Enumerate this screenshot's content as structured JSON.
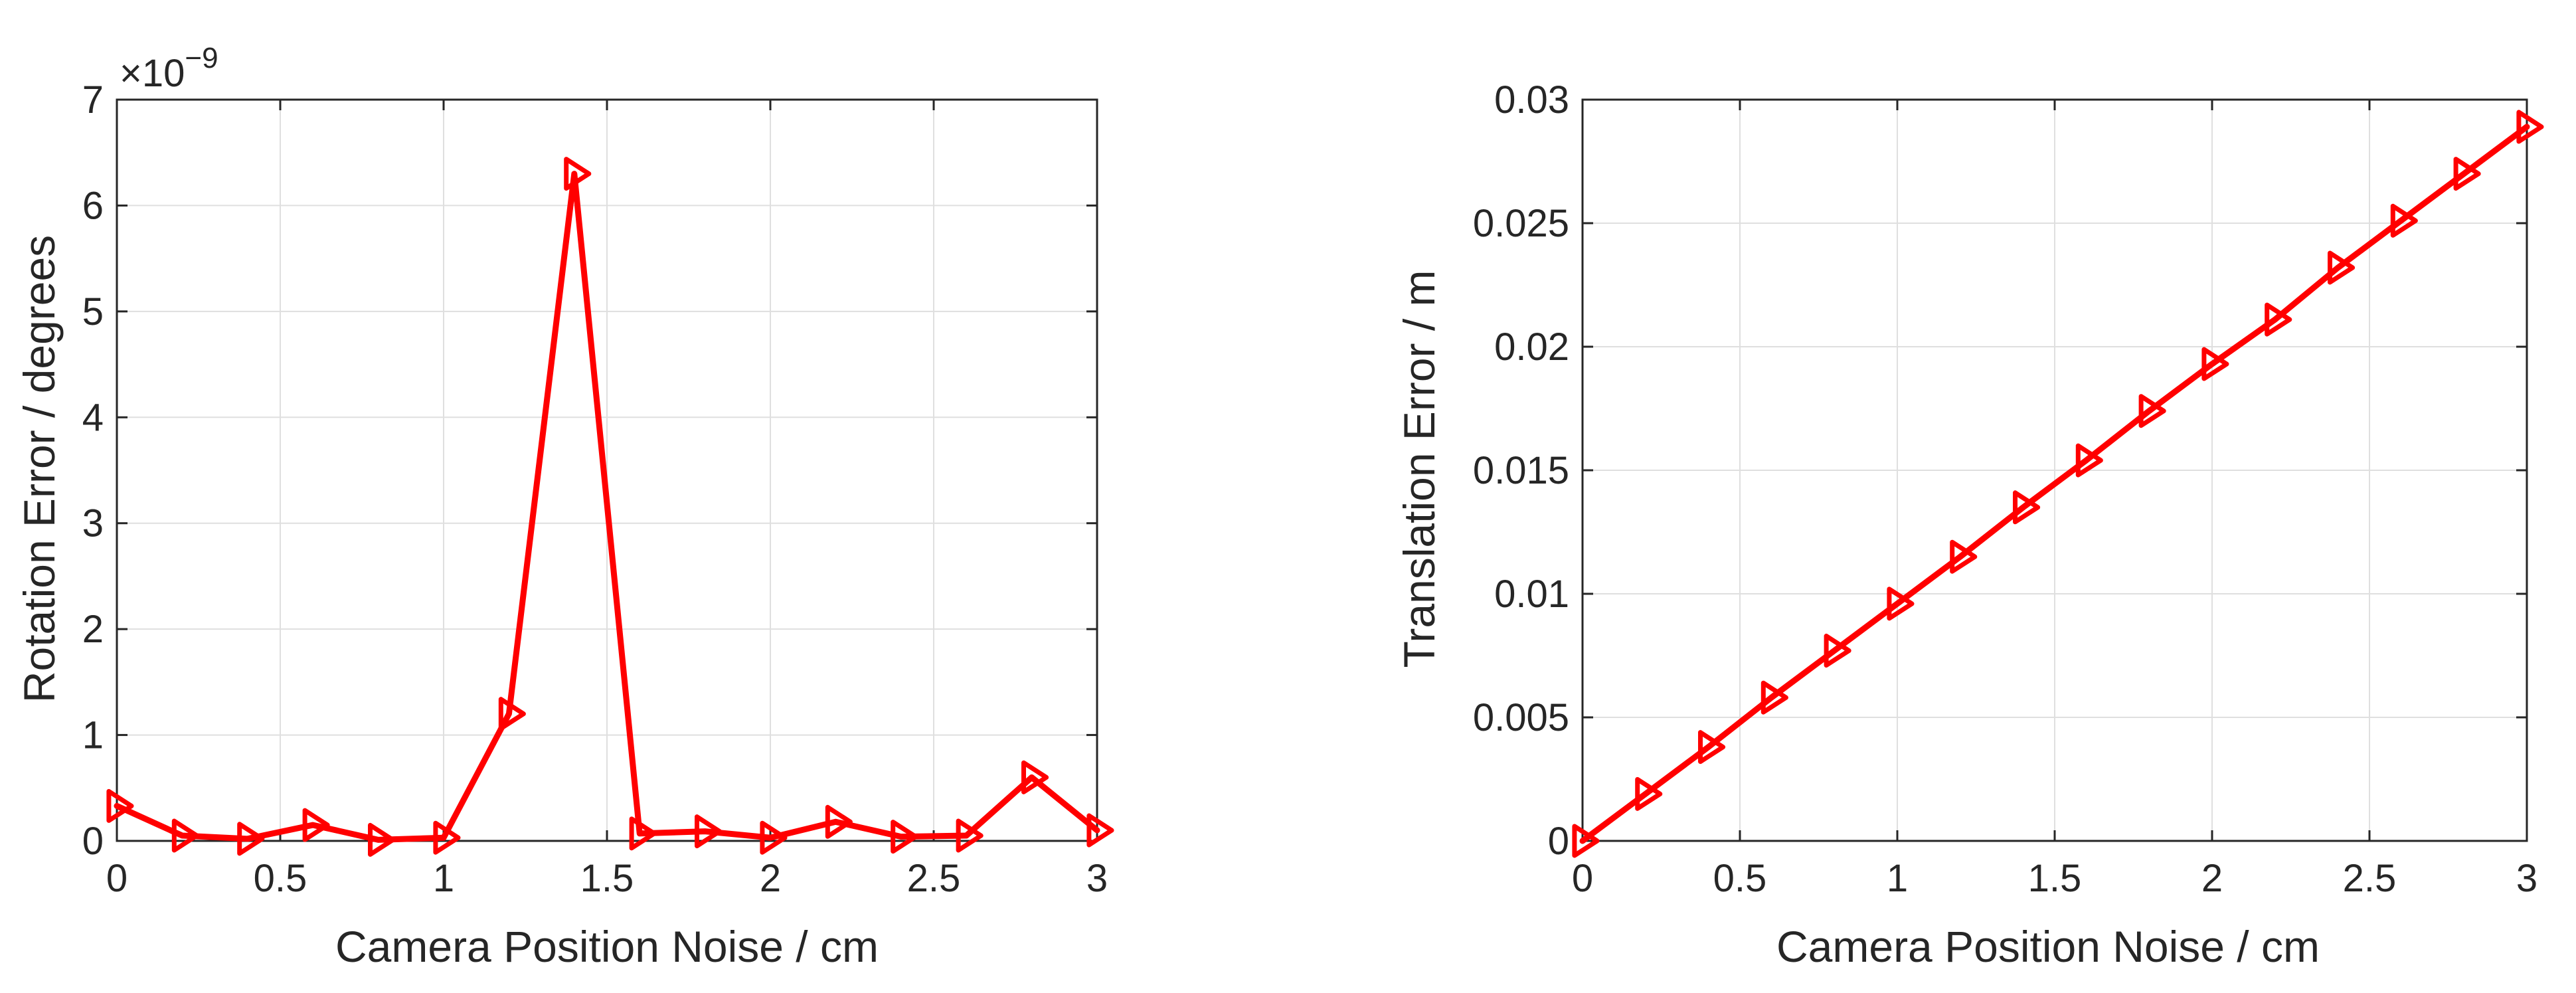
{
  "chart_data": [
    {
      "type": "line",
      "xlabel": "Camera Position Noise / cm",
      "ylabel": "Rotation Error / degrees",
      "exponent_multiplier": "×10",
      "exponent_power": "−9",
      "xlim": [
        0,
        3
      ],
      "ylim": [
        0,
        7
      ],
      "xticks": [
        0,
        0.5,
        1,
        1.5,
        2,
        2.5,
        3
      ],
      "xtick_labels": [
        "0",
        "0.5",
        "1",
        "1.5",
        "2",
        "2.5",
        "3"
      ],
      "yticks": [
        0,
        1,
        2,
        3,
        4,
        5,
        6,
        7
      ],
      "ytick_labels": [
        "0",
        "1",
        "2",
        "3",
        "4",
        "5",
        "6",
        "7"
      ],
      "grid": true,
      "series": [
        {
          "color": "#ff0000",
          "marker": "triangle-right",
          "x": [
            0,
            0.2,
            0.4,
            0.6,
            0.8,
            1.0,
            1.2,
            1.4,
            1.6,
            1.8,
            2.0,
            2.2,
            2.4,
            2.6,
            2.8,
            3.0
          ],
          "y": [
            0.33,
            0.05,
            0.02,
            0.15,
            0.01,
            0.03,
            1.2,
            6.3,
            0.07,
            0.09,
            0.03,
            0.18,
            0.04,
            0.05,
            0.6,
            0.1
          ]
        }
      ]
    },
    {
      "type": "line",
      "xlabel": "Camera Position Noise / cm",
      "ylabel": "Translation Error / m",
      "xlim": [
        0,
        3
      ],
      "ylim": [
        0,
        0.03
      ],
      "xticks": [
        0,
        0.5,
        1,
        1.5,
        2,
        2.5,
        3
      ],
      "xtick_labels": [
        "0",
        "0.5",
        "1",
        "1.5",
        "2",
        "2.5",
        "3"
      ],
      "yticks": [
        0,
        0.005,
        0.01,
        0.015,
        0.02,
        0.025,
        0.03
      ],
      "ytick_labels": [
        "0",
        "0.005",
        "0.01",
        "0.015",
        "0.02",
        "0.025",
        "0.03"
      ],
      "grid": true,
      "series": [
        {
          "color": "#ff0000",
          "marker": "triangle-right",
          "x": [
            0,
            0.2,
            0.4,
            0.6,
            0.8,
            1.0,
            1.2,
            1.4,
            1.6,
            1.8,
            2.0,
            2.2,
            2.4,
            2.6,
            2.8,
            3.0
          ],
          "y": [
            0,
            0.0019,
            0.0038,
            0.0058,
            0.0077,
            0.0096,
            0.0115,
            0.0135,
            0.0154,
            0.0174,
            0.0193,
            0.0211,
            0.0232,
            0.0251,
            0.027,
            0.0289
          ]
        }
      ]
    }
  ]
}
